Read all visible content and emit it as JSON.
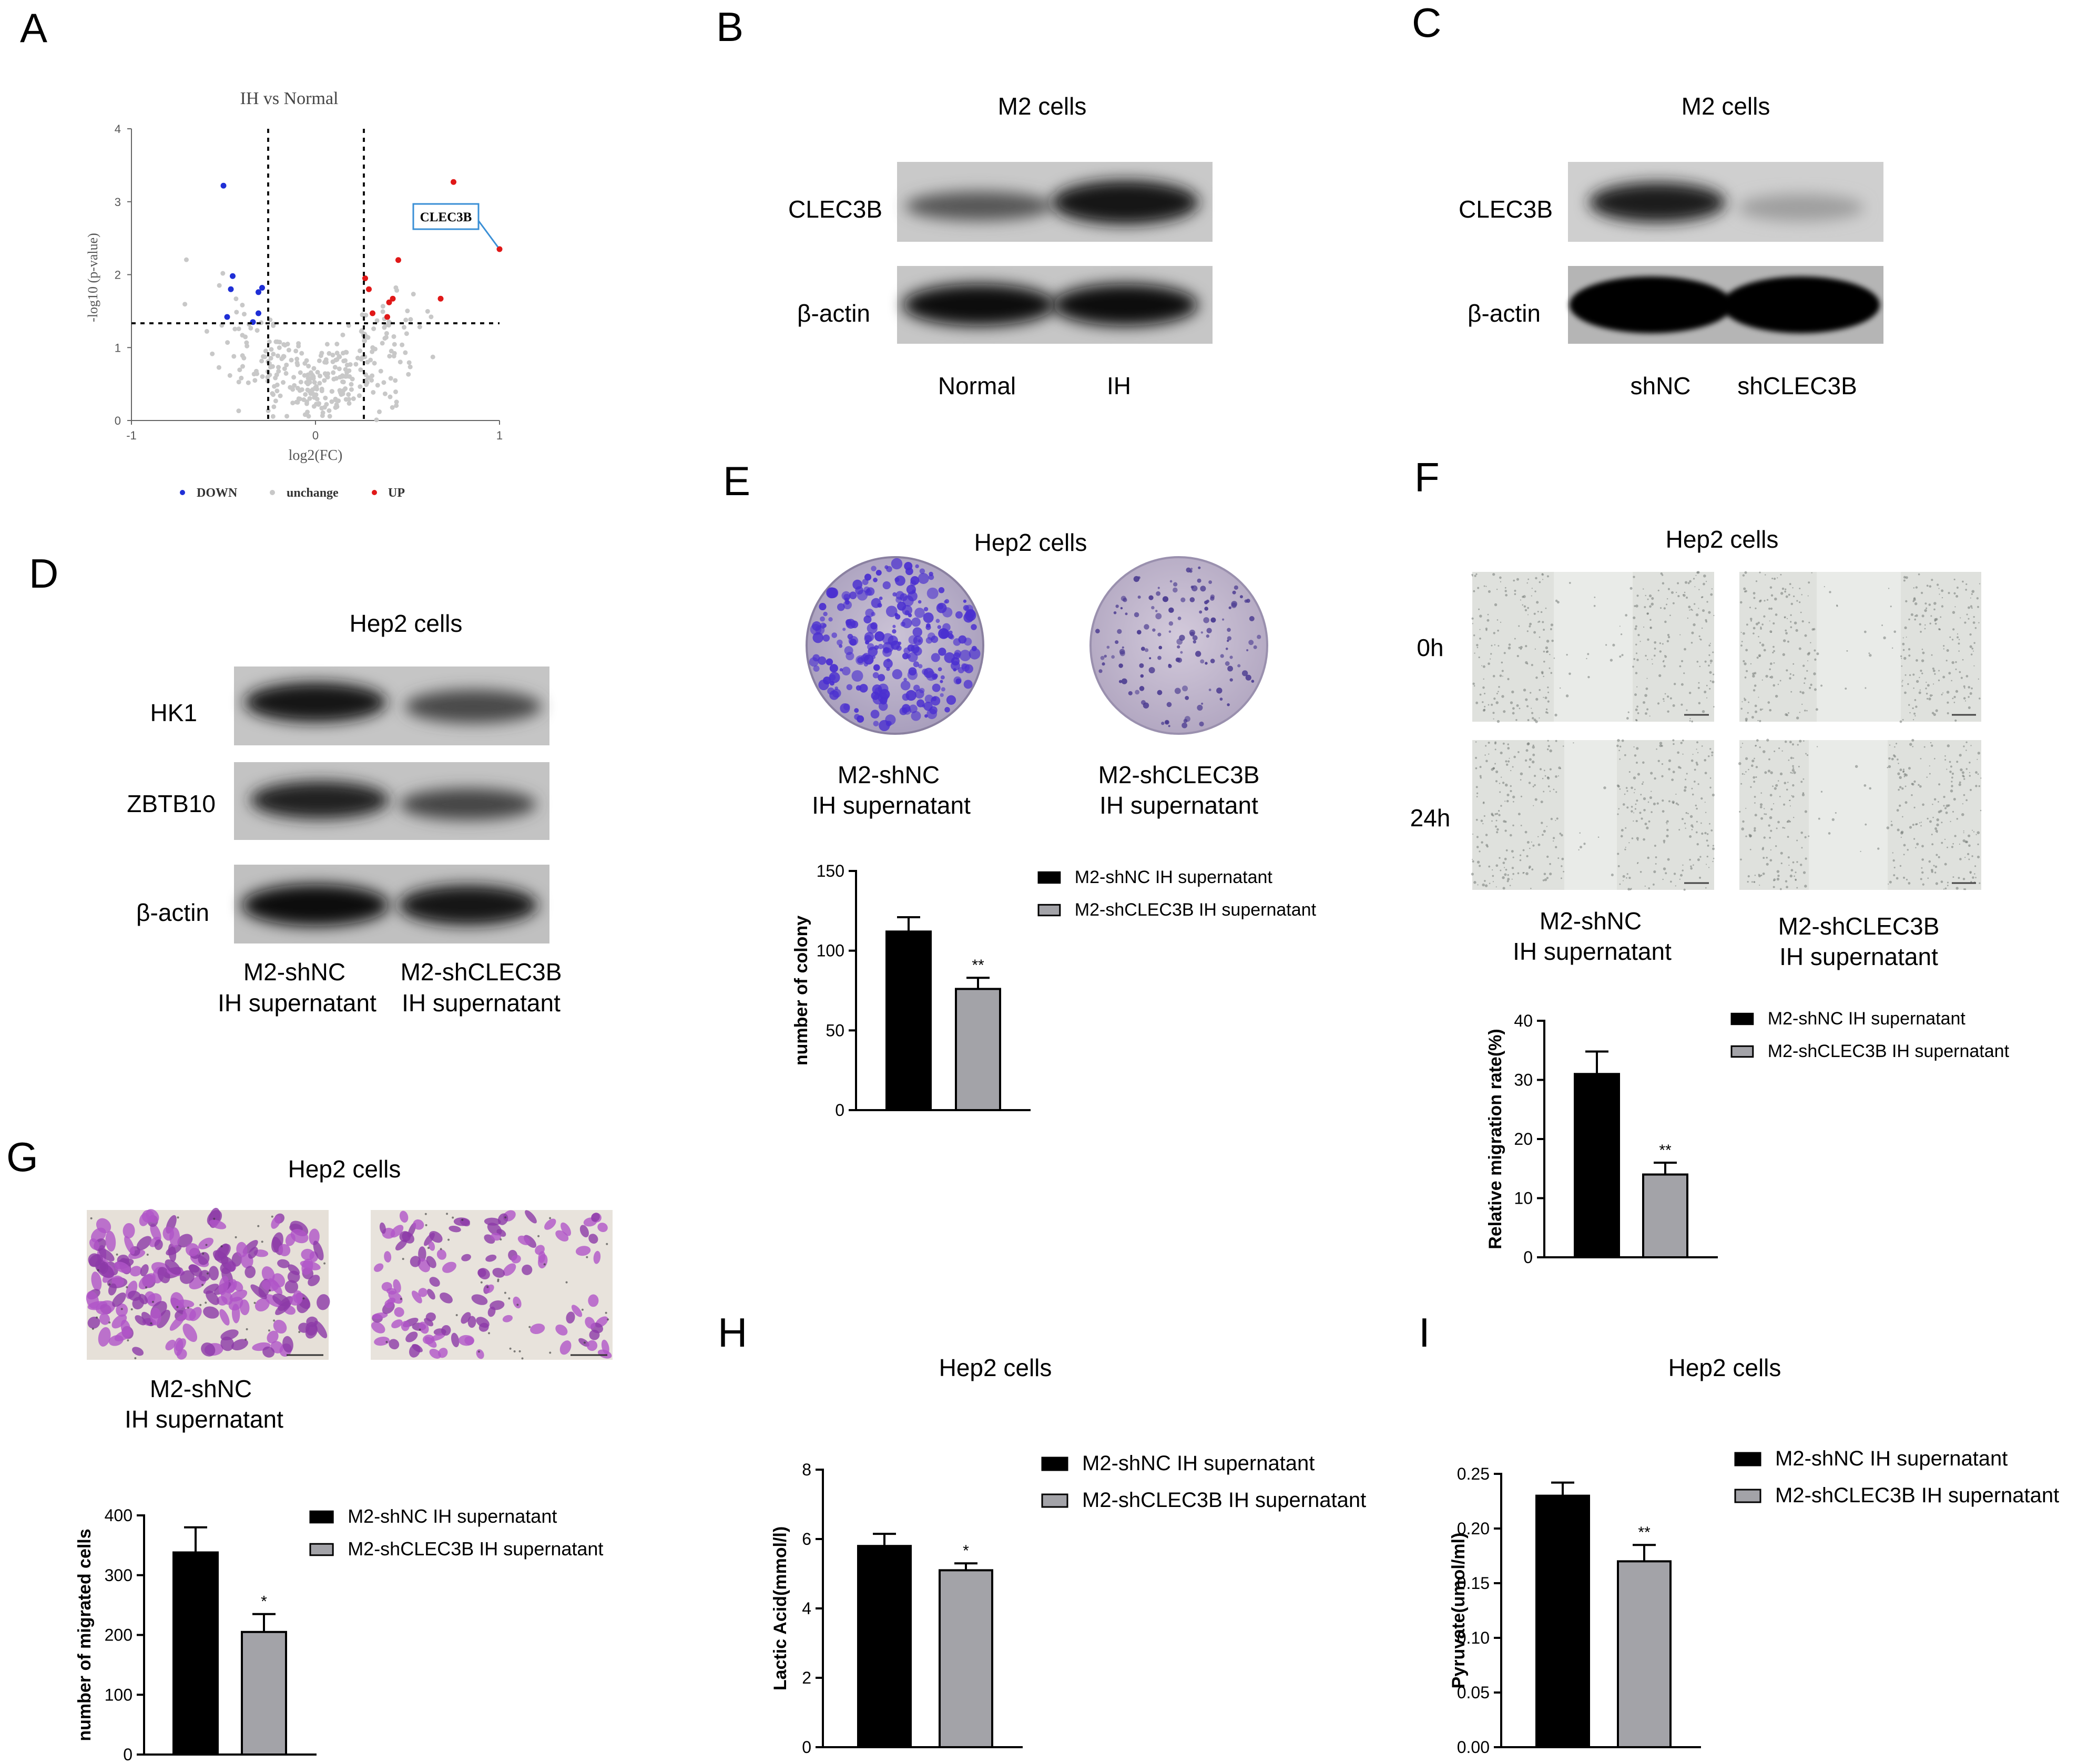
{
  "panels": {
    "A": {
      "letter": "A",
      "title": "IH vs Normal",
      "xlabel": "log2(FC)",
      "ylabel": "-log10 (p-value)",
      "x_ticks": [
        "-1",
        "0",
        "1"
      ],
      "y_ticks": [
        "0",
        "1",
        "2",
        "3",
        "4"
      ],
      "callout": "CLEC3B",
      "legend": [
        {
          "label": "DOWN",
          "color": "#1f2fd6"
        },
        {
          "label": "unchange",
          "color": "#c8c8c8"
        },
        {
          "label": "UP",
          "color": "#e01818"
        }
      ]
    },
    "B": {
      "letter": "B",
      "title": "M2 cells",
      "rows": [
        "CLEC3B",
        "β-actin"
      ],
      "lanes": [
        "Normal",
        "IH"
      ]
    },
    "C": {
      "letter": "C",
      "title": "M2 cells",
      "rows": [
        "CLEC3B",
        "β-actin"
      ],
      "lanes": [
        "shNC",
        "shCLEC3B"
      ]
    },
    "D": {
      "letter": "D",
      "title": "Hep2 cells",
      "rows": [
        "HK1",
        "ZBTB10",
        "β-actin"
      ],
      "lane1_line1": "M2-shNC",
      "lane1_line2": "IH supernatant",
      "lane2_line1": "M2-shCLEC3B",
      "lane2_line2": "IH supernatant"
    },
    "E": {
      "letter": "E",
      "title": "Hep2 cells",
      "img1_line1": "M2-shNC",
      "img1_line2": "IH supernatant",
      "img2_line1": "M2-shCLEC3B",
      "img2_line2": "IH supernatant"
    },
    "F": {
      "letter": "F",
      "title": "Hep2 cells",
      "row_labels": [
        "0h",
        "24h"
      ],
      "img1_line1": "M2-shNC",
      "img1_line2": "IH supernatant",
      "img2_line1": "M2-shCLEC3B",
      "img2_line2": "IH supernatant"
    },
    "G": {
      "letter": "G",
      "title": "Hep2 cells",
      "img1_line1": "M2-shNC",
      "img1_line2": "IH supernatant"
    },
    "H": {
      "letter": "H",
      "title": "Hep2 cells"
    },
    "I": {
      "letter": "I",
      "title": "Hep2 cells"
    }
  },
  "chart_data": [
    {
      "panel": "A",
      "type": "scatter",
      "title": "IH vs Normal",
      "xlabel": "log2(FC)",
      "ylabel": "-log10 (p-value)",
      "xlim": [
        -1,
        1
      ],
      "ylim": [
        0,
        4
      ],
      "thresholds": {
        "x": [
          -0.26,
          0.26
        ],
        "y": 1.3
      },
      "series": [
        {
          "name": "DOWN",
          "color": "#1f2fd6",
          "points": [
            [
              -0.5,
              3.22
            ],
            [
              -0.45,
              1.98
            ],
            [
              -0.46,
              1.8
            ],
            [
              -0.31,
              1.76
            ],
            [
              -0.29,
              1.82
            ],
            [
              -0.31,
              1.47
            ],
            [
              -0.34,
              1.35
            ],
            [
              -0.48,
              1.42
            ]
          ]
        },
        {
          "name": "UP",
          "color": "#e01818",
          "points": [
            [
              0.75,
              3.27
            ],
            [
              1.0,
              2.35
            ],
            [
              0.45,
              2.2
            ],
            [
              0.27,
              1.95
            ],
            [
              0.29,
              1.8
            ],
            [
              0.4,
              1.62
            ],
            [
              0.42,
              1.67
            ],
            [
              0.68,
              1.67
            ],
            [
              0.31,
              1.47
            ],
            [
              0.39,
              1.42
            ]
          ]
        },
        {
          "name": "unchange",
          "color": "#c8c8c8",
          "points": []
        }
      ],
      "annotation": "CLEC3B"
    },
    {
      "panel": "E",
      "type": "bar",
      "categories": [
        "M2-shNC IH supernatant",
        "M2-shCLEC3B IH supernatant"
      ],
      "values": [
        112,
        76
      ],
      "errors": [
        9,
        7
      ],
      "colors": [
        "#000000",
        "#a3a3a8"
      ],
      "ylabel": "number of colony",
      "ylim": [
        0,
        150
      ],
      "yticks": [
        0,
        50,
        100,
        150
      ],
      "significance": [
        "",
        "**"
      ],
      "legend": [
        "M2-shNC IH supernatant",
        "M2-shCLEC3B IH supernatant"
      ]
    },
    {
      "panel": "F",
      "type": "bar",
      "categories": [
        "M2-shNC IH supernatant",
        "M2-shCLEC3B IH supernatant"
      ],
      "values": [
        31,
        14
      ],
      "errors": [
        3.8,
        2
      ],
      "colors": [
        "#000000",
        "#a3a3a8"
      ],
      "ylabel": "Relative migration rate(%)",
      "ylim": [
        0,
        40
      ],
      "yticks": [
        0,
        10,
        20,
        30,
        40
      ],
      "significance": [
        "",
        "**"
      ],
      "legend": [
        "M2-shNC IH supernatant",
        "M2-shCLEC3B IH supernatant"
      ]
    },
    {
      "panel": "G",
      "type": "bar",
      "categories": [
        "M2-shNC IH supernatant",
        "M2-shCLEC3B IH supernatant"
      ],
      "values": [
        338,
        205
      ],
      "errors": [
        42,
        30
      ],
      "colors": [
        "#000000",
        "#a3a3a8"
      ],
      "ylabel": "number of migrated cells",
      "ylim": [
        0,
        400
      ],
      "yticks": [
        0,
        100,
        200,
        300,
        400
      ],
      "significance": [
        "",
        "*"
      ],
      "legend": [
        "M2-shNC IH supernatant",
        "M2-shCLEC3B IH supernatant"
      ]
    },
    {
      "panel": "H",
      "type": "bar",
      "categories": [
        "M2-shNC IH supernatant",
        "M2-shCLEC3B IH supernatant"
      ],
      "values": [
        5.8,
        5.1
      ],
      "errors": [
        0.35,
        0.2
      ],
      "colors": [
        "#000000",
        "#a3a3a8"
      ],
      "ylabel": "Lactic Acid(mmol/l)",
      "ylim": [
        0,
        8
      ],
      "yticks": [
        0,
        2,
        4,
        6,
        8
      ],
      "significance": [
        "",
        "*"
      ],
      "legend": [
        "M2-shNC IH supernatant",
        "M2-shCLEC3B IH supernatant"
      ]
    },
    {
      "panel": "I",
      "type": "bar",
      "categories": [
        "M2-shNC IH supernatant",
        "M2-shCLEC3B IH supernatant"
      ],
      "values": [
        0.23,
        0.17
      ],
      "errors": [
        0.012,
        0.015
      ],
      "colors": [
        "#000000",
        "#a3a3a8"
      ],
      "ylabel": "Pyruvate(umol/ml)",
      "ylim": [
        0,
        0.25
      ],
      "yticks": [
        "0.00",
        "0.05",
        "0.10",
        "0.15",
        "0.20",
        "0.25"
      ],
      "significance": [
        "",
        "**"
      ],
      "legend": [
        "M2-shNC IH supernatant",
        "M2-shCLEC3B IH supernatant"
      ]
    }
  ]
}
